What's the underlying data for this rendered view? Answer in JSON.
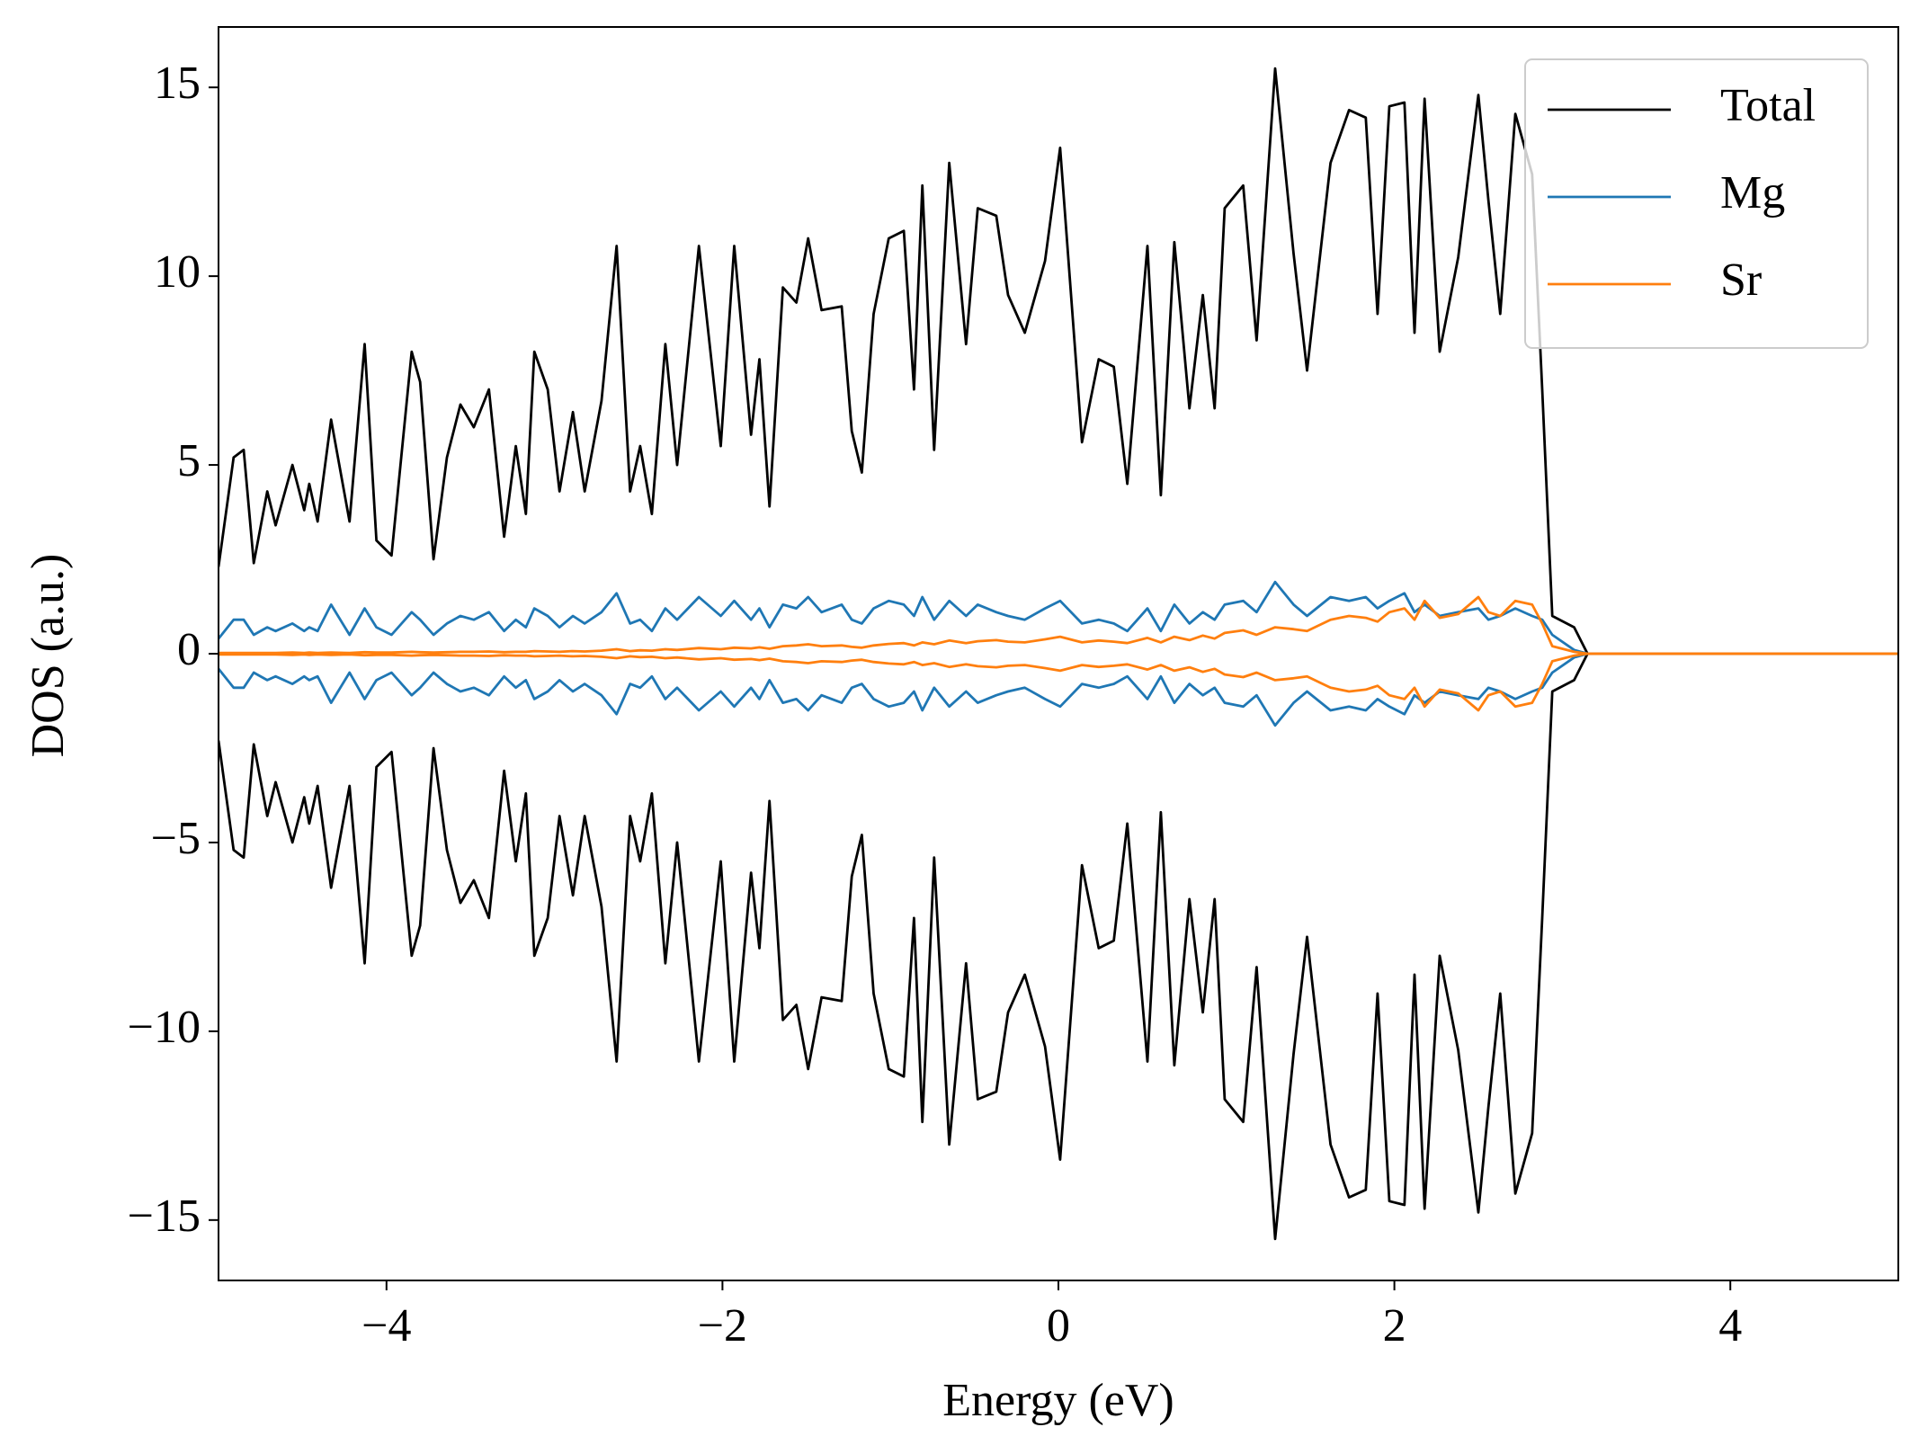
{
  "chart_data": {
    "type": "line",
    "xlabel": "Energy (eV)",
    "ylabel": "DOS (a.u.)",
    "x": [
      -5.0,
      -4.91,
      -4.85,
      -4.79,
      -4.71,
      -4.66,
      -4.56,
      -4.49,
      -4.46,
      -4.41,
      -4.33,
      -4.22,
      -4.13,
      -4.06,
      -3.97,
      -3.85,
      -3.8,
      -3.72,
      -3.64,
      -3.56,
      -3.48,
      -3.39,
      -3.3,
      -3.23,
      -3.17,
      -3.12,
      -3.04,
      -2.97,
      -2.89,
      -2.82,
      -2.72,
      -2.63,
      -2.55,
      -2.49,
      -2.42,
      -2.34,
      -2.27,
      -2.14,
      -2.01,
      -1.93,
      -1.83,
      -1.78,
      -1.72,
      -1.64,
      -1.56,
      -1.49,
      -1.41,
      -1.29,
      -1.23,
      -1.17,
      -1.1,
      -1.01,
      -0.92,
      -0.86,
      -0.81,
      -0.74,
      -0.65,
      -0.55,
      -0.48,
      -0.37,
      -0.3,
      -0.2,
      -0.08,
      0.01,
      0.14,
      0.24,
      0.33,
      0.41,
      0.53,
      0.61,
      0.69,
      0.78,
      0.86,
      0.93,
      0.99,
      1.1,
      1.18,
      1.29,
      1.4,
      1.48,
      1.62,
      1.73,
      1.83,
      1.9,
      1.97,
      2.06,
      2.12,
      2.18,
      2.27,
      2.38,
      2.5,
      2.56,
      2.63,
      2.72,
      2.82,
      2.88,
      2.94,
      3.07,
      3.15,
      5.0
    ],
    "series": [
      {
        "name": "Total",
        "color": "#000000",
        "values": [
          2.3,
          5.2,
          5.4,
          2.4,
          4.3,
          3.4,
          5.0,
          3.8,
          4.5,
          3.5,
          6.2,
          3.5,
          8.2,
          3.0,
          2.6,
          8.0,
          7.2,
          2.5,
          5.2,
          6.6,
          6.0,
          7.0,
          3.1,
          5.5,
          3.7,
          8.0,
          7.0,
          4.3,
          6.4,
          4.3,
          6.7,
          10.8,
          4.3,
          5.5,
          3.7,
          8.2,
          5.0,
          10.8,
          5.5,
          10.8,
          5.8,
          7.8,
          3.9,
          9.7,
          9.3,
          11.0,
          9.1,
          9.2,
          5.9,
          4.8,
          9.0,
          11.0,
          11.2,
          7.0,
          12.4,
          5.4,
          13.0,
          8.2,
          11.8,
          11.6,
          9.5,
          8.5,
          10.4,
          13.4,
          5.6,
          7.8,
          7.6,
          4.5,
          10.8,
          4.2,
          10.9,
          6.5,
          9.5,
          6.5,
          11.8,
          12.4,
          8.3,
          15.5,
          10.6,
          7.5,
          13.0,
          14.4,
          14.2,
          9.0,
          14.5,
          14.6,
          8.5,
          14.7,
          8.0,
          10.5,
          14.8,
          12.0,
          9.0,
          14.3,
          12.7,
          7.0,
          1.0,
          0.7,
          0,
          0
        ]
      },
      {
        "name": "Total",
        "color": "#000000",
        "values": [
          -2.3,
          -5.2,
          -5.4,
          -2.4,
          -4.3,
          -3.4,
          -5.0,
          -3.8,
          -4.5,
          -3.5,
          -6.2,
          -3.5,
          -8.2,
          -3.0,
          -2.6,
          -8.0,
          -7.2,
          -2.5,
          -5.2,
          -6.6,
          -6.0,
          -7.0,
          -3.1,
          -5.5,
          -3.7,
          -8.0,
          -7.0,
          -4.3,
          -6.4,
          -4.3,
          -6.7,
          -10.8,
          -4.3,
          -5.5,
          -3.7,
          -8.2,
          -5.0,
          -10.8,
          -5.5,
          -10.8,
          -5.8,
          -7.8,
          -3.9,
          -9.7,
          -9.3,
          -11.0,
          -9.1,
          -9.2,
          -5.9,
          -4.8,
          -9.0,
          -11.0,
          -11.2,
          -7.0,
          -12.4,
          -5.4,
          -13.0,
          -8.2,
          -11.8,
          -11.6,
          -9.5,
          -8.5,
          -10.4,
          -13.4,
          -5.6,
          -7.8,
          -7.6,
          -4.5,
          -10.8,
          -4.2,
          -10.9,
          -6.5,
          -9.5,
          -6.5,
          -11.8,
          -12.4,
          -8.3,
          -15.5,
          -10.6,
          -7.5,
          -13.0,
          -14.4,
          -14.2,
          -9.0,
          -14.5,
          -14.6,
          -8.5,
          -14.7,
          -8.0,
          -10.5,
          -14.8,
          -12.0,
          -9.0,
          -14.3,
          -12.7,
          -7.0,
          -1.0,
          -0.7,
          0,
          0
        ]
      },
      {
        "name": "Mg",
        "color": "#1f77b4",
        "values": [
          0.4,
          0.9,
          0.9,
          0.5,
          0.7,
          0.6,
          0.8,
          0.6,
          0.7,
          0.6,
          1.3,
          0.5,
          1.2,
          0.7,
          0.5,
          1.1,
          0.9,
          0.5,
          0.8,
          1.0,
          0.9,
          1.1,
          0.6,
          0.9,
          0.7,
          1.2,
          1.0,
          0.7,
          1.0,
          0.8,
          1.1,
          1.6,
          0.8,
          0.9,
          0.6,
          1.2,
          0.9,
          1.5,
          1.0,
          1.4,
          0.9,
          1.2,
          0.7,
          1.3,
          1.2,
          1.5,
          1.1,
          1.3,
          0.9,
          0.8,
          1.2,
          1.4,
          1.3,
          1.0,
          1.5,
          0.9,
          1.4,
          1.0,
          1.3,
          1.1,
          1.0,
          0.9,
          1.2,
          1.4,
          0.8,
          0.9,
          0.8,
          0.6,
          1.2,
          0.6,
          1.3,
          0.8,
          1.1,
          0.9,
          1.3,
          1.4,
          1.1,
          1.9,
          1.3,
          1.0,
          1.5,
          1.4,
          1.5,
          1.2,
          1.4,
          1.6,
          1.1,
          1.3,
          1.0,
          1.1,
          1.2,
          0.9,
          1.0,
          1.2,
          1.0,
          0.9,
          0.5,
          0.1,
          0,
          0
        ]
      },
      {
        "name": "Mg",
        "color": "#1f77b4",
        "values": [
          -0.4,
          -0.9,
          -0.9,
          -0.5,
          -0.7,
          -0.6,
          -0.8,
          -0.6,
          -0.7,
          -0.6,
          -1.3,
          -0.5,
          -1.2,
          -0.7,
          -0.5,
          -1.1,
          -0.9,
          -0.5,
          -0.8,
          -1.0,
          -0.9,
          -1.1,
          -0.6,
          -0.9,
          -0.7,
          -1.2,
          -1.0,
          -0.7,
          -1.0,
          -0.8,
          -1.1,
          -1.6,
          -0.8,
          -0.9,
          -0.6,
          -1.2,
          -0.9,
          -1.5,
          -1.0,
          -1.4,
          -0.9,
          -1.2,
          -0.7,
          -1.3,
          -1.2,
          -1.5,
          -1.1,
          -1.3,
          -0.9,
          -0.8,
          -1.2,
          -1.4,
          -1.3,
          -1.0,
          -1.5,
          -0.9,
          -1.4,
          -1.0,
          -1.3,
          -1.1,
          -1.0,
          -0.9,
          -1.2,
          -1.4,
          -0.8,
          -0.9,
          -0.8,
          -0.6,
          -1.2,
          -0.6,
          -1.3,
          -0.8,
          -1.1,
          -0.9,
          -1.3,
          -1.4,
          -1.1,
          -1.9,
          -1.3,
          -1.0,
          -1.5,
          -1.4,
          -1.5,
          -1.2,
          -1.4,
          -1.6,
          -1.1,
          -1.3,
          -1.0,
          -1.1,
          -1.2,
          -0.9,
          -1.0,
          -1.2,
          -1.0,
          -0.9,
          -0.5,
          -0.1,
          0,
          0
        ]
      },
      {
        "name": "Sr",
        "color": "#ff7f0e",
        "values": [
          0.02,
          0.02,
          0.02,
          0.02,
          0.02,
          0.02,
          0.03,
          0.02,
          0.03,
          0.02,
          0.03,
          0.02,
          0.04,
          0.03,
          0.03,
          0.05,
          0.04,
          0.03,
          0.04,
          0.05,
          0.05,
          0.06,
          0.04,
          0.05,
          0.05,
          0.07,
          0.06,
          0.05,
          0.07,
          0.06,
          0.08,
          0.12,
          0.07,
          0.09,
          0.08,
          0.12,
          0.1,
          0.15,
          0.12,
          0.16,
          0.14,
          0.17,
          0.13,
          0.2,
          0.22,
          0.25,
          0.2,
          0.22,
          0.18,
          0.16,
          0.22,
          0.26,
          0.28,
          0.22,
          0.3,
          0.25,
          0.35,
          0.28,
          0.33,
          0.36,
          0.32,
          0.3,
          0.38,
          0.45,
          0.3,
          0.35,
          0.32,
          0.28,
          0.42,
          0.3,
          0.45,
          0.36,
          0.48,
          0.4,
          0.55,
          0.62,
          0.5,
          0.7,
          0.65,
          0.6,
          0.9,
          1.0,
          0.95,
          0.85,
          1.1,
          1.2,
          0.9,
          1.4,
          0.95,
          1.05,
          1.5,
          1.1,
          1.0,
          1.4,
          1.3,
          0.8,
          0.2,
          0.05,
          0,
          0
        ]
      },
      {
        "name": "Sr",
        "color": "#ff7f0e",
        "values": [
          -0.02,
          -0.02,
          -0.02,
          -0.02,
          -0.02,
          -0.02,
          -0.03,
          -0.02,
          -0.03,
          -0.02,
          -0.03,
          -0.02,
          -0.04,
          -0.03,
          -0.03,
          -0.05,
          -0.04,
          -0.03,
          -0.04,
          -0.05,
          -0.05,
          -0.06,
          -0.04,
          -0.05,
          -0.05,
          -0.07,
          -0.06,
          -0.05,
          -0.07,
          -0.06,
          -0.08,
          -0.12,
          -0.07,
          -0.09,
          -0.08,
          -0.12,
          -0.1,
          -0.15,
          -0.12,
          -0.16,
          -0.14,
          -0.17,
          -0.13,
          -0.2,
          -0.22,
          -0.25,
          -0.2,
          -0.22,
          -0.18,
          -0.16,
          -0.22,
          -0.26,
          -0.28,
          -0.22,
          -0.3,
          -0.25,
          -0.35,
          -0.28,
          -0.33,
          -0.36,
          -0.32,
          -0.3,
          -0.38,
          -0.45,
          -0.3,
          -0.35,
          -0.32,
          -0.28,
          -0.42,
          -0.3,
          -0.45,
          -0.36,
          -0.48,
          -0.4,
          -0.55,
          -0.62,
          -0.5,
          -0.7,
          -0.65,
          -0.6,
          -0.9,
          -1.0,
          -0.95,
          -0.85,
          -1.1,
          -1.2,
          -0.9,
          -1.4,
          -0.95,
          -1.05,
          -1.5,
          -1.1,
          -1.0,
          -1.4,
          -1.3,
          -0.8,
          -0.2,
          -0.05,
          0,
          0
        ]
      }
    ],
    "xlim": [
      -5,
      5
    ],
    "ylim": [
      -16.6,
      16.6
    ],
    "xticks": [
      {
        "value": -4,
        "label": "−4"
      },
      {
        "value": -2,
        "label": "−2"
      },
      0,
      2,
      4
    ],
    "yticks": [
      {
        "value": -15,
        "label": "−15"
      },
      {
        "value": -10,
        "label": "−10"
      },
      {
        "value": -5,
        "label": "−5"
      },
      0,
      5,
      10,
      15
    ],
    "grid": false,
    "legend": "upper right"
  }
}
